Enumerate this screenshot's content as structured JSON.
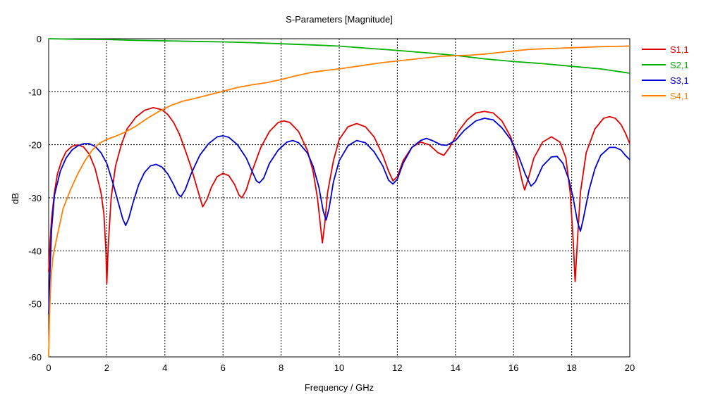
{
  "chart_data": {
    "type": "line",
    "title": "S-Parameters [Magnitude]",
    "xlabel": "Frequency / GHz",
    "ylabel": "dB",
    "xlim": [
      0,
      20
    ],
    "ylim": [
      -60,
      0
    ],
    "xticks": [
      0,
      2,
      4,
      6,
      8,
      10,
      12,
      14,
      16,
      18,
      20
    ],
    "yticks": [
      0,
      -10,
      -20,
      -30,
      -40,
      -50,
      -60
    ],
    "grid": true,
    "legend_position": "right",
    "series": [
      {
        "name": "S1,1",
        "color": "#e00000",
        "points": [
          [
            0,
            -44
          ],
          [
            0.05,
            -38
          ],
          [
            0.1,
            -34
          ],
          [
            0.2,
            -29
          ],
          [
            0.3,
            -25.5
          ],
          [
            0.45,
            -23
          ],
          [
            0.6,
            -21.3
          ],
          [
            0.8,
            -20.3
          ],
          [
            1.0,
            -20
          ],
          [
            1.2,
            -20.4
          ],
          [
            1.4,
            -21.8
          ],
          [
            1.6,
            -24.5
          ],
          [
            1.8,
            -29
          ],
          [
            1.9,
            -33
          ],
          [
            1.97,
            -40
          ],
          [
            2.0,
            -46.2
          ],
          [
            2.05,
            -39
          ],
          [
            2.15,
            -30
          ],
          [
            2.3,
            -24
          ],
          [
            2.5,
            -20
          ],
          [
            2.7,
            -17
          ],
          [
            3.0,
            -14.8
          ],
          [
            3.3,
            -13.5
          ],
          [
            3.6,
            -13
          ],
          [
            3.9,
            -13.4
          ],
          [
            4.1,
            -14.3
          ],
          [
            4.3,
            -15.8
          ],
          [
            4.5,
            -18
          ],
          [
            4.7,
            -21
          ],
          [
            4.9,
            -24.2
          ],
          [
            5.1,
            -28
          ],
          [
            5.3,
            -31.7
          ],
          [
            5.45,
            -30.3
          ],
          [
            5.6,
            -28
          ],
          [
            5.8,
            -26
          ],
          [
            6.0,
            -25.4
          ],
          [
            6.2,
            -25.8
          ],
          [
            6.4,
            -27.5
          ],
          [
            6.55,
            -29.5
          ],
          [
            6.65,
            -30
          ],
          [
            6.8,
            -28.5
          ],
          [
            7.0,
            -25
          ],
          [
            7.3,
            -20.5
          ],
          [
            7.6,
            -17.5
          ],
          [
            7.9,
            -15.8
          ],
          [
            8.1,
            -15.5
          ],
          [
            8.3,
            -15.8
          ],
          [
            8.6,
            -17.5
          ],
          [
            8.9,
            -21
          ],
          [
            9.1,
            -25
          ],
          [
            9.25,
            -30
          ],
          [
            9.35,
            -35
          ],
          [
            9.42,
            -38.5
          ],
          [
            9.5,
            -35
          ],
          [
            9.6,
            -29
          ],
          [
            9.8,
            -23
          ],
          [
            10.0,
            -19
          ],
          [
            10.3,
            -16.6
          ],
          [
            10.6,
            -16
          ],
          [
            10.9,
            -16.6
          ],
          [
            11.2,
            -18.5
          ],
          [
            11.5,
            -22
          ],
          [
            11.7,
            -25
          ],
          [
            11.85,
            -26.8
          ],
          [
            12.0,
            -26
          ],
          [
            12.2,
            -23
          ],
          [
            12.5,
            -20.5
          ],
          [
            12.8,
            -19.5
          ],
          [
            13.1,
            -20
          ],
          [
            13.4,
            -21.5
          ],
          [
            13.6,
            -22
          ],
          [
            13.8,
            -20.5
          ],
          [
            14.1,
            -17.5
          ],
          [
            14.4,
            -15.3
          ],
          [
            14.7,
            -14
          ],
          [
            15.0,
            -13.7
          ],
          [
            15.3,
            -14
          ],
          [
            15.6,
            -15.5
          ],
          [
            15.9,
            -18.5
          ],
          [
            16.1,
            -22
          ],
          [
            16.3,
            -27
          ],
          [
            16.38,
            -28.5
          ],
          [
            16.5,
            -26.5
          ],
          [
            16.7,
            -22.5
          ],
          [
            17.0,
            -19.5
          ],
          [
            17.3,
            -18.5
          ],
          [
            17.6,
            -19.5
          ],
          [
            17.8,
            -22.5
          ],
          [
            17.95,
            -29
          ],
          [
            18.05,
            -38
          ],
          [
            18.12,
            -45.8
          ],
          [
            18.2,
            -38
          ],
          [
            18.3,
            -29
          ],
          [
            18.5,
            -21.5
          ],
          [
            18.8,
            -17
          ],
          [
            19.1,
            -15
          ],
          [
            19.3,
            -14.7
          ],
          [
            19.5,
            -15
          ],
          [
            19.7,
            -16.2
          ],
          [
            19.85,
            -17.8
          ],
          [
            20.0,
            -19.8
          ]
        ]
      },
      {
        "name": "S2,1",
        "color": "#00b000",
        "points": [
          [
            0,
            0
          ],
          [
            1,
            -0.1
          ],
          [
            2,
            -0.15
          ],
          [
            3,
            -0.3
          ],
          [
            4,
            -0.4
          ],
          [
            5,
            -0.5
          ],
          [
            6,
            -0.6
          ],
          [
            7,
            -0.75
          ],
          [
            8,
            -0.95
          ],
          [
            9,
            -1.15
          ],
          [
            10,
            -1.4
          ],
          [
            11,
            -1.8
          ],
          [
            12,
            -2.2
          ],
          [
            13,
            -2.65
          ],
          [
            14,
            -3.15
          ],
          [
            15,
            -3.8
          ],
          [
            16,
            -4.3
          ],
          [
            17,
            -4.7
          ],
          [
            18,
            -5.2
          ],
          [
            19,
            -5.7
          ],
          [
            20,
            -6.5
          ]
        ]
      },
      {
        "name": "S3,1",
        "color": "#0000d0",
        "points": [
          [
            0,
            -52
          ],
          [
            0.05,
            -43
          ],
          [
            0.1,
            -36
          ],
          [
            0.2,
            -29.5
          ],
          [
            0.4,
            -25
          ],
          [
            0.6,
            -22.5
          ],
          [
            0.8,
            -21
          ],
          [
            1.0,
            -20.2
          ],
          [
            1.2,
            -19.8
          ],
          [
            1.4,
            -19.8
          ],
          [
            1.6,
            -20.3
          ],
          [
            1.8,
            -21.5
          ],
          [
            2.0,
            -23.5
          ],
          [
            2.2,
            -27
          ],
          [
            2.4,
            -31
          ],
          [
            2.55,
            -34
          ],
          [
            2.65,
            -35.2
          ],
          [
            2.75,
            -34
          ],
          [
            2.9,
            -31
          ],
          [
            3.1,
            -27.5
          ],
          [
            3.3,
            -25.2
          ],
          [
            3.5,
            -24
          ],
          [
            3.7,
            -23.7
          ],
          [
            3.9,
            -24.2
          ],
          [
            4.1,
            -25.5
          ],
          [
            4.3,
            -27.5
          ],
          [
            4.45,
            -29.3
          ],
          [
            4.55,
            -29.8
          ],
          [
            4.7,
            -28.5
          ],
          [
            4.9,
            -25.5
          ],
          [
            5.2,
            -22
          ],
          [
            5.5,
            -19.8
          ],
          [
            5.8,
            -18.5
          ],
          [
            6.0,
            -18.3
          ],
          [
            6.2,
            -18.6
          ],
          [
            6.5,
            -20
          ],
          [
            6.8,
            -22.5
          ],
          [
            7.0,
            -25
          ],
          [
            7.15,
            -26.8
          ],
          [
            7.25,
            -27.2
          ],
          [
            7.4,
            -26.3
          ],
          [
            7.6,
            -23.5
          ],
          [
            7.9,
            -21
          ],
          [
            8.2,
            -19.5
          ],
          [
            8.4,
            -19.2
          ],
          [
            8.6,
            -19.6
          ],
          [
            8.9,
            -21.5
          ],
          [
            9.1,
            -24
          ],
          [
            9.3,
            -28
          ],
          [
            9.45,
            -32.5
          ],
          [
            9.55,
            -34.2
          ],
          [
            9.65,
            -32
          ],
          [
            9.8,
            -27
          ],
          [
            10.0,
            -23
          ],
          [
            10.3,
            -20.2
          ],
          [
            10.6,
            -19.2
          ],
          [
            10.9,
            -19.6
          ],
          [
            11.2,
            -21.3
          ],
          [
            11.5,
            -24
          ],
          [
            11.7,
            -26.7
          ],
          [
            11.85,
            -27.4
          ],
          [
            12.0,
            -26.5
          ],
          [
            12.2,
            -23.5
          ],
          [
            12.5,
            -20.5
          ],
          [
            12.8,
            -19.2
          ],
          [
            13.0,
            -18.8
          ],
          [
            13.2,
            -19.2
          ],
          [
            13.5,
            -20
          ],
          [
            13.7,
            -20.1
          ],
          [
            14.0,
            -19.2
          ],
          [
            14.3,
            -17.3
          ],
          [
            14.7,
            -15.5
          ],
          [
            15.0,
            -15
          ],
          [
            15.3,
            -15.3
          ],
          [
            15.6,
            -16.8
          ],
          [
            15.9,
            -19
          ],
          [
            16.2,
            -22.5
          ],
          [
            16.4,
            -25.5
          ],
          [
            16.6,
            -27.8
          ],
          [
            16.75,
            -27
          ],
          [
            17.0,
            -24
          ],
          [
            17.3,
            -22.3
          ],
          [
            17.5,
            -22.2
          ],
          [
            17.7,
            -23.5
          ],
          [
            17.9,
            -26.5
          ],
          [
            18.05,
            -30
          ],
          [
            18.2,
            -34.5
          ],
          [
            18.3,
            -36.3
          ],
          [
            18.4,
            -34
          ],
          [
            18.6,
            -28.5
          ],
          [
            18.8,
            -24.5
          ],
          [
            19.0,
            -22
          ],
          [
            19.3,
            -20.5
          ],
          [
            19.5,
            -20.5
          ],
          [
            19.7,
            -21
          ],
          [
            19.85,
            -22
          ],
          [
            20.0,
            -22.8
          ]
        ]
      },
      {
        "name": "S4,1",
        "color": "#ff8000",
        "points": [
          [
            0,
            -60
          ],
          [
            0.03,
            -52
          ],
          [
            0.08,
            -45
          ],
          [
            0.15,
            -41
          ],
          [
            0.3,
            -37
          ],
          [
            0.5,
            -32
          ],
          [
            0.75,
            -28.5
          ],
          [
            1.0,
            -25.5
          ],
          [
            1.25,
            -23
          ],
          [
            1.5,
            -21
          ],
          [
            1.75,
            -19.7
          ],
          [
            2.0,
            -19
          ],
          [
            2.3,
            -18.4
          ],
          [
            2.6,
            -17.7
          ],
          [
            3.0,
            -16.5
          ],
          [
            3.4,
            -15
          ],
          [
            3.8,
            -13.7
          ],
          [
            4.2,
            -12.6
          ],
          [
            4.6,
            -11.8
          ],
          [
            5.0,
            -11.3
          ],
          [
            5.5,
            -10.6
          ],
          [
            6.0,
            -9.9
          ],
          [
            6.5,
            -9.2
          ],
          [
            7.0,
            -8.7
          ],
          [
            7.5,
            -8.3
          ],
          [
            8.0,
            -7.7
          ],
          [
            8.5,
            -7
          ],
          [
            9.0,
            -6.4
          ],
          [
            9.5,
            -6
          ],
          [
            10.0,
            -5.7
          ],
          [
            10.5,
            -5.3
          ],
          [
            11.0,
            -4.9
          ],
          [
            11.5,
            -4.5
          ],
          [
            12.0,
            -4.2
          ],
          [
            12.5,
            -3.9
          ],
          [
            13.0,
            -3.6
          ],
          [
            13.5,
            -3.3
          ],
          [
            14.0,
            -3.2
          ],
          [
            14.5,
            -3.1
          ],
          [
            15.0,
            -2.9
          ],
          [
            15.5,
            -2.6
          ],
          [
            16.0,
            -2.3
          ],
          [
            16.5,
            -2.05
          ],
          [
            17.0,
            -1.9
          ],
          [
            17.5,
            -1.8
          ],
          [
            18.0,
            -1.7
          ],
          [
            18.5,
            -1.6
          ],
          [
            19.0,
            -1.5
          ],
          [
            19.5,
            -1.45
          ],
          [
            20.0,
            -1.4
          ]
        ]
      }
    ]
  }
}
